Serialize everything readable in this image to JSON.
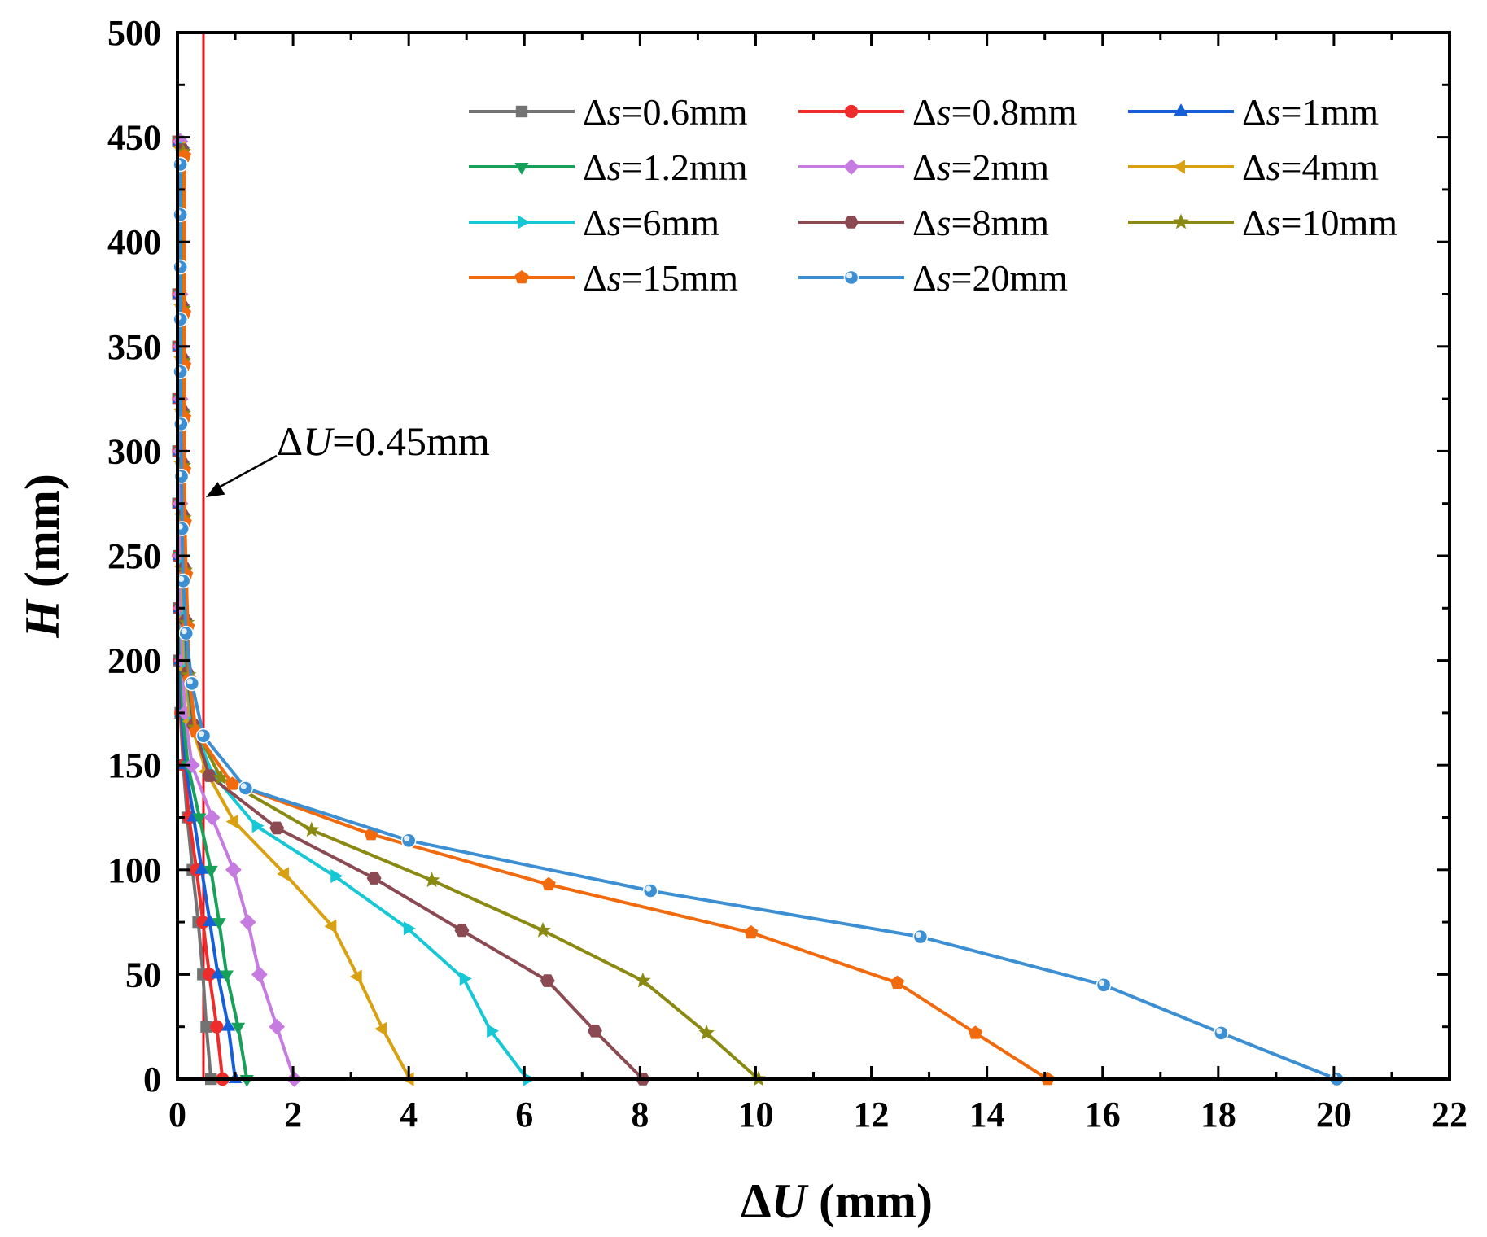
{
  "chart_data": {
    "type": "line",
    "title": "",
    "xlabel": {
      "italic": "U",
      "suffix": " (mm)"
    },
    "ylabel": {
      "italic": "H",
      "suffix": " (mm)"
    },
    "xlim": [
      0,
      22
    ],
    "ylim": [
      0,
      500
    ],
    "xticks": [
      "0",
      "2",
      "4",
      "6",
      "8",
      "10",
      "12",
      "14",
      "16",
      "18",
      "20",
      "22"
    ],
    "yticks": [
      "0",
      "50",
      "100",
      "150",
      "200",
      "250",
      "300",
      "350",
      "400",
      "450",
      "500"
    ],
    "legend_prefix": "Δ",
    "legend_var": "s",
    "annotation": {
      "prefix": "Δ",
      "italic": "U",
      "text": "=0.45mm",
      "x": 0.45,
      "arrow_to_y": 278
    },
    "threshold_line": {
      "x": 0.45,
      "color": "#e3131b"
    },
    "series": [
      {
        "name": "=0.6mm",
        "color": "#737373",
        "marker": "square",
        "x": [
          0.58,
          0.5,
          0.44,
          0.36,
          0.26,
          0.17,
          0.1,
          0.05,
          0.03,
          0.02,
          0.02,
          0.01,
          0.01,
          0.01,
          0.01,
          0.01,
          0.01
        ],
        "y": [
          0,
          25,
          50,
          75,
          100,
          125,
          150,
          175,
          200,
          225,
          250,
          275,
          300,
          325,
          350,
          375,
          448
        ]
      },
      {
        "name": "=0.8mm",
        "color": "#ee2c2c",
        "marker": "circle",
        "x": [
          0.78,
          0.68,
          0.55,
          0.44,
          0.33,
          0.2,
          0.12,
          0.06,
          0.04,
          0.03,
          0.02,
          0.02,
          0.02,
          0.02,
          0.02,
          0.02,
          0.02
        ],
        "y": [
          0,
          25,
          50,
          75,
          100,
          125,
          150,
          175,
          200,
          225,
          250,
          275,
          300,
          325,
          350,
          375,
          448
        ]
      },
      {
        "name": "=1mm",
        "color": "#1560d8",
        "marker": "triangle-up",
        "x": [
          1.0,
          0.88,
          0.7,
          0.56,
          0.42,
          0.28,
          0.14,
          0.07,
          0.05,
          0.04,
          0.03,
          0.03,
          0.03,
          0.03,
          0.03,
          0.03,
          0.03
        ],
        "y": [
          0,
          25,
          50,
          75,
          100,
          125,
          150,
          175,
          200,
          225,
          250,
          275,
          300,
          325,
          350,
          375,
          448
        ]
      },
      {
        "name": "=1.2mm",
        "color": "#16a05a",
        "marker": "triangle-down",
        "x": [
          1.2,
          1.05,
          0.85,
          0.72,
          0.58,
          0.38,
          0.18,
          0.09,
          0.06,
          0.05,
          0.04,
          0.04,
          0.04,
          0.04,
          0.04,
          0.04,
          0.04
        ],
        "y": [
          0,
          25,
          50,
          75,
          100,
          125,
          150,
          175,
          200,
          225,
          250,
          275,
          300,
          325,
          350,
          375,
          448
        ]
      },
      {
        "name": "=2mm",
        "color": "#c57be0",
        "marker": "diamond",
        "x": [
          2.02,
          1.72,
          1.42,
          1.22,
          0.97,
          0.6,
          0.25,
          0.13,
          0.08,
          0.06,
          0.05,
          0.05,
          0.05,
          0.05,
          0.05,
          0.05,
          0.05
        ],
        "y": [
          0,
          25,
          50,
          75,
          100,
          125,
          150,
          175,
          200,
          225,
          250,
          275,
          300,
          325,
          350,
          375,
          448
        ]
      },
      {
        "name": "=4mm",
        "color": "#d9a011",
        "marker": "triangle-left",
        "x": [
          4.02,
          3.55,
          3.12,
          2.68,
          1.86,
          0.98,
          0.5,
          0.22,
          0.13,
          0.1,
          0.08,
          0.08,
          0.07,
          0.07,
          0.07,
          0.07,
          0.07
        ],
        "y": [
          0,
          24,
          49,
          73,
          98,
          123,
          147,
          171,
          196,
          220,
          245,
          270,
          295,
          320,
          345,
          370,
          445
        ]
      },
      {
        "name": "=6mm",
        "color": "#16c8d6",
        "marker": "triangle-right",
        "x": [
          6.05,
          5.42,
          4.95,
          3.98,
          2.72,
          1.36,
          0.6,
          0.26,
          0.15,
          0.12,
          0.1,
          0.09,
          0.08,
          0.08,
          0.08,
          0.08,
          0.08
        ],
        "y": [
          0,
          23,
          48,
          72,
          97,
          121,
          146,
          170,
          195,
          220,
          245,
          270,
          295,
          320,
          345,
          370,
          445
        ]
      },
      {
        "name": "=8mm",
        "color": "#8b4a52",
        "marker": "hexagon",
        "x": [
          8.05,
          7.22,
          6.4,
          4.92,
          3.4,
          1.72,
          0.55,
          0.28,
          0.17,
          0.14,
          0.12,
          0.1,
          0.09,
          0.09,
          0.09,
          0.09,
          0.09
        ],
        "y": [
          0,
          23,
          47,
          71,
          96,
          120,
          145,
          169,
          194,
          219,
          244,
          269,
          294,
          319,
          344,
          369,
          444
        ]
      },
      {
        "name": "=10mm",
        "color": "#8a8a12",
        "marker": "star",
        "x": [
          10.05,
          9.15,
          8.05,
          6.32,
          4.4,
          2.32,
          0.75,
          0.3,
          0.19,
          0.16,
          0.13,
          0.11,
          0.1,
          0.1,
          0.1,
          0.1,
          0.1
        ],
        "y": [
          0,
          22,
          47,
          71,
          95,
          119,
          144,
          168,
          193,
          218,
          243,
          268,
          293,
          318,
          343,
          368,
          443
        ]
      },
      {
        "name": "=15mm",
        "color": "#f26a0e",
        "marker": "pentagon",
        "x": [
          15.05,
          13.8,
          12.45,
          9.92,
          6.42,
          3.35,
          0.95,
          0.32,
          0.21,
          0.18,
          0.15,
          0.13,
          0.12,
          0.12,
          0.12,
          0.12,
          0.12
        ],
        "y": [
          0,
          22,
          46,
          70,
          93,
          117,
          141,
          166,
          191,
          216,
          241,
          266,
          291,
          316,
          341,
          366,
          441
        ]
      },
      {
        "name": "=20mm",
        "color": "#3c8fd2",
        "marker": "sphere",
        "x": [
          20.05,
          18.05,
          16.02,
          12.85,
          8.18,
          4.0,
          1.18,
          0.45,
          0.25,
          0.15,
          0.1,
          0.08,
          0.07,
          0.06,
          0.05,
          0.05,
          0.05,
          0.05,
          0.05
        ],
        "y": [
          0,
          22,
          45,
          68,
          90,
          114,
          139,
          164,
          189,
          213,
          238,
          263,
          288,
          313,
          338,
          363,
          388,
          413,
          437
        ]
      }
    ]
  }
}
